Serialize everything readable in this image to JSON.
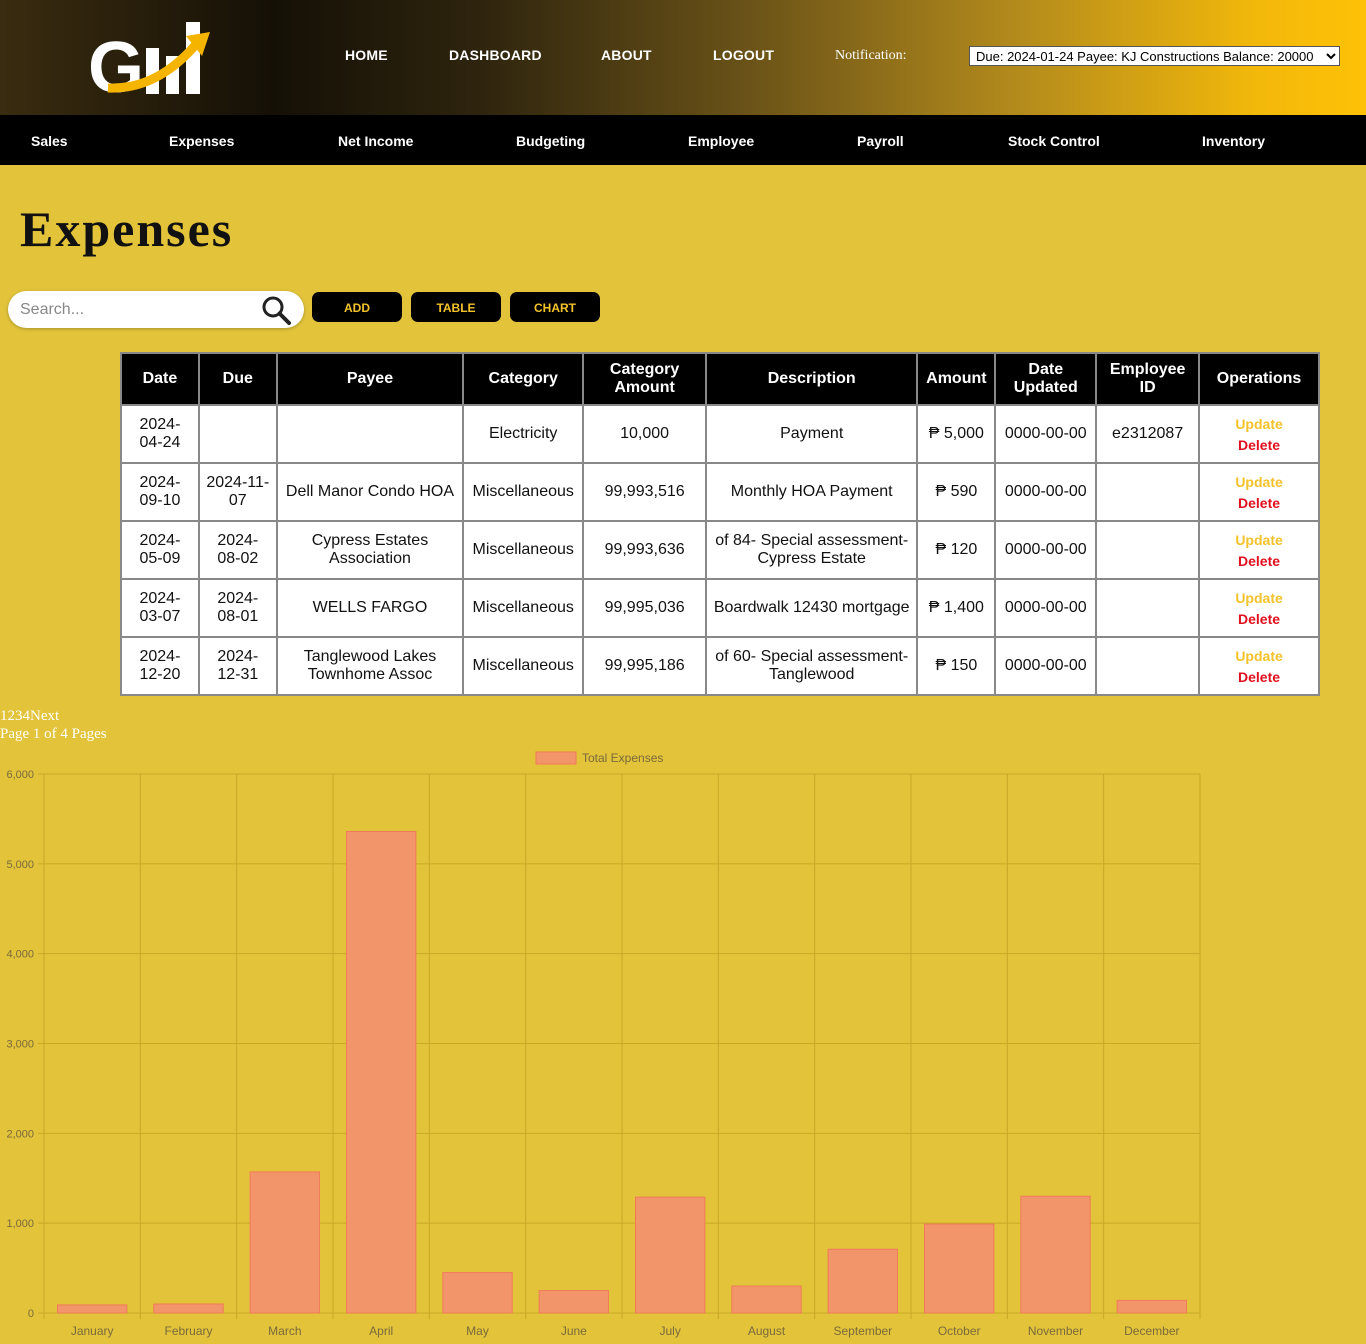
{
  "header": {
    "logo_text": "Gill",
    "nav": [
      "HOME",
      "DASHBOARD",
      "ABOUT",
      "LOGOUT"
    ],
    "notification_label": "Notification:",
    "notification_value": "Due: 2024-01-24 Payee: KJ Constructions Balance: 20000"
  },
  "subnav": [
    "Sales",
    "Expenses",
    "Net Income",
    "Budgeting",
    "Employee",
    "Payroll",
    "Stock Control",
    "Inventory"
  ],
  "page_title": "Expenses",
  "search": {
    "placeholder": "Search..."
  },
  "buttons": {
    "add": "ADD",
    "table": "TABLE",
    "chart": "CHART"
  },
  "table": {
    "headers": [
      "Date",
      "Due",
      "Payee",
      "Category",
      "Category Amount",
      "Description",
      "Amount",
      "Date Updated",
      "Employee ID",
      "Operations"
    ],
    "rows": [
      [
        "2024-04-24",
        "",
        "",
        "Electricity",
        "10,000",
        "Payment",
        "₱ 5,000",
        "0000-00-00",
        "e2312087"
      ],
      [
        "2024-09-10",
        "2024-11-07",
        "Dell Manor Condo HOA",
        "Miscellaneous",
        "99,993,516",
        "Monthly HOA Payment",
        "₱ 590",
        "0000-00-00",
        ""
      ],
      [
        "2024-05-09",
        "2024-08-02",
        "Cypress Estates Association",
        "Miscellaneous",
        "99,993,636",
        "of 84- Special assessment-Cypress Estate",
        "₱ 120",
        "0000-00-00",
        ""
      ],
      [
        "2024-03-07",
        "2024-08-01",
        "WELLS FARGO",
        "Miscellaneous",
        "99,995,036",
        "Boardwalk 12430 mortgage",
        "₱ 1,400",
        "0000-00-00",
        ""
      ],
      [
        "2024-12-20",
        "2024-12-31",
        "Tanglewood Lakes Townhome Assoc",
        "Miscellaneous",
        "99,995,186",
        "of 60- Special assessment-Tanglewood",
        "₱ 150",
        "0000-00-00",
        ""
      ]
    ],
    "op_update": "Update",
    "op_delete": "Delete"
  },
  "pagination": {
    "pages": [
      "1",
      "2",
      "3",
      "4"
    ],
    "next": "Next",
    "status": "Page 1 of 4 Pages"
  },
  "chart_data": {
    "type": "bar",
    "categories": [
      "January",
      "February",
      "March",
      "April",
      "May",
      "June",
      "July",
      "August",
      "September",
      "October",
      "November",
      "December"
    ],
    "series": [
      {
        "name": "Total Expenses",
        "values": [
          90,
          100,
          1570,
          5360,
          450,
          250,
          1290,
          300,
          710,
          990,
          1300,
          140
        ]
      }
    ],
    "ylim": [
      0,
      6000
    ],
    "yticks": [
      "0",
      "1,000",
      "2,000",
      "3,000",
      "4,000",
      "5,000",
      "6,000"
    ],
    "legend": "top-center",
    "grid": true,
    "colors": {
      "bar_fill": "#f2956a",
      "bar_stroke": "#f07b5a",
      "grid": "#c9a826",
      "tick_text": "#7a6a3a"
    }
  }
}
